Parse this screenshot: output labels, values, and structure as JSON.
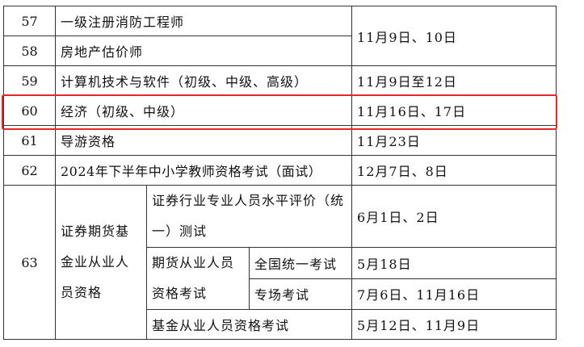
{
  "highlight_color": "#e8262a",
  "rows": [
    {
      "num": "57",
      "name": "一级注册消防工程师"
    },
    {
      "num": "58",
      "name": "房地产估价师",
      "date_shared_with_57": "11月9日、10日"
    },
    {
      "num": "59",
      "name": "计算机技术与软件（初级、中级、高级）",
      "date": "11月9日至12日"
    },
    {
      "num": "60",
      "name": "经济（初级、中级）",
      "date": "11月16日、17日",
      "highlighted": true
    },
    {
      "num": "61",
      "name": "导游资格",
      "date": "11月23日"
    },
    {
      "num": "62",
      "name": "2024年下半年中小学教师资格考试（面试）",
      "date": "12月7日、8日"
    }
  ],
  "row63": {
    "num": "63",
    "name": "证券期货基金业从业人员资格",
    "sub": [
      {
        "name": "证券行业专业人员水平评价（统一）测试",
        "date": "6月1日、2日"
      },
      {
        "name": "期货从业人员资格考试",
        "parts": [
          {
            "name": "全国统一考试",
            "date": "5月18日"
          },
          {
            "name": "专场考试",
            "date": "7月6日、11月16日"
          }
        ]
      },
      {
        "name": "基金从业人员资格考试",
        "date": "5月12日、11月9日"
      }
    ]
  }
}
